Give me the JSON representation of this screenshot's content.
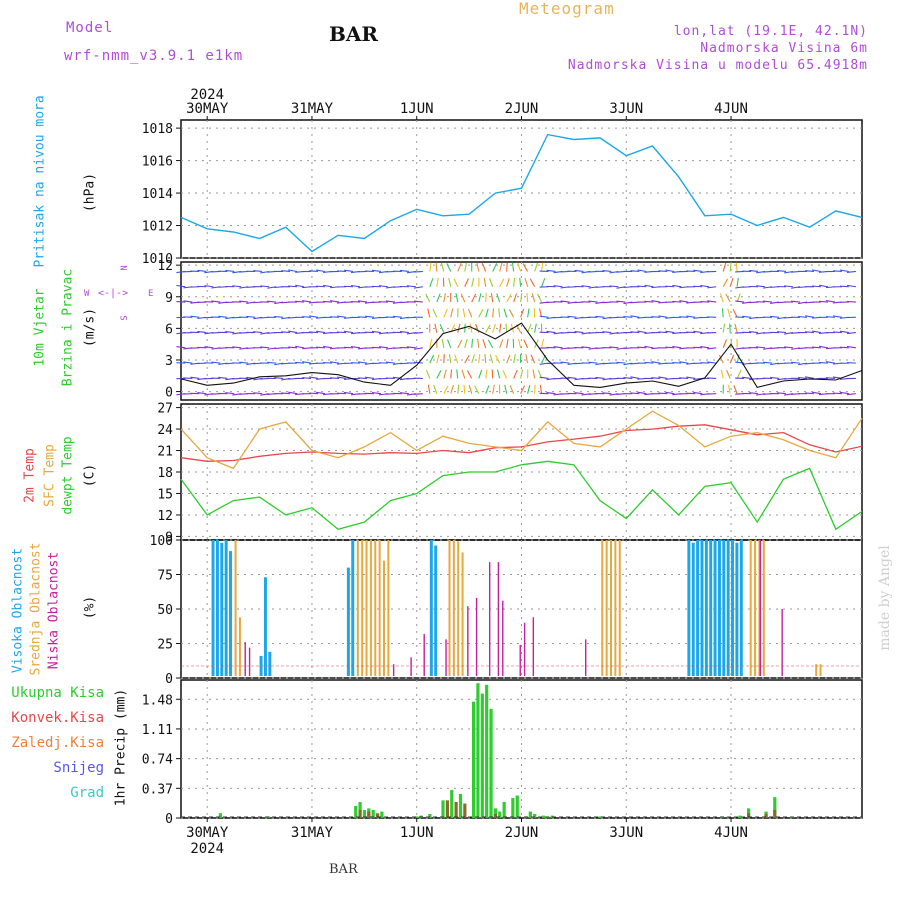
{
  "header": {
    "model_label": "Model",
    "model_name": "wrf-nmm_v3.9.1 e1km",
    "station": "BAR",
    "title": "Meteogram",
    "coords": "lon,lat (19.1E, 42.1N)",
    "elevation": "Nadmorska Visina 6m",
    "model_elevation": "Nadmorska Visina u modelu 65.4918m"
  },
  "footer": {
    "station": "BAR",
    "credit": "made by Angel"
  },
  "time_axis": {
    "year": "2024",
    "days": [
      "30MAY",
      "31MAY",
      "1JUN",
      "2JUN",
      "3JUN",
      "4JUN"
    ]
  },
  "colors": {
    "pressure": "#1ea7e8",
    "temp2m": "#e8474c",
    "sfc_temp": "#e7a840",
    "dewpoint": "#2ecc2e",
    "high_cloud": "#1ea7e8",
    "mid_cloud": "#e7a840",
    "low_cloud": "#c6209a",
    "total_precip": "#2ecc2e",
    "conv_precip": "#e8474c",
    "frozen_precip": "#f07f3a",
    "snow": "#5858e0",
    "hail": "#3cc8c8",
    "wind_label": "#2ecc2e",
    "compass": "#b04dd6"
  },
  "panels": {
    "pressure": {
      "label": "Pritisak na nivou mora",
      "unit": "(hPa)",
      "ticks": [
        "1010",
        "1012",
        "1014",
        "1016",
        "1018"
      ]
    },
    "wind": {
      "label_line1": "10m Vjetar",
      "label_line2": "Brzina i Pravac",
      "unit": "(m/s)",
      "compass_n": "N",
      "compass_s": "S",
      "compass_w": "W",
      "compass_e": "E",
      "ticks": [
        "0",
        "3",
        "6",
        "9",
        "12"
      ]
    },
    "temperature": {
      "label_2m": "2m Temp",
      "label_sfc": "SFC Temp",
      "label_dew": "dewpt Temp",
      "unit": "(C)",
      "ticks": [
        "9",
        "12",
        "15",
        "18",
        "21",
        "24",
        "27"
      ]
    },
    "clouds": {
      "label_high": "Visoka Oblacnost",
      "label_mid": "Srednja Oblacnost",
      "label_low": "Niska Oblacnost",
      "unit": "(%)",
      "ticks": [
        "0",
        "25",
        "50",
        "75",
        "100"
      ]
    },
    "precip": {
      "legend": [
        "Ukupna Kisa",
        "Konvek.Kisa",
        "Zaledj.Kisa",
        "Snijeg",
        "Grad"
      ],
      "unit": "1hr Precip (mm)",
      "ticks": [
        "0",
        "0.37",
        "0.74",
        "1.11",
        "1.48"
      ]
    }
  },
  "chart_data": [
    {
      "type": "line",
      "title": "Pritisak na nivou mora",
      "ylabel": "(hPa)",
      "ylim": [
        1010,
        1018.5
      ],
      "x_hours": [
        0,
        6,
        12,
        18,
        24,
        30,
        36,
        42,
        48,
        54,
        60,
        66,
        72,
        78,
        84,
        90,
        96,
        102,
        108,
        114,
        120,
        126,
        132,
        138,
        144,
        150,
        156
      ],
      "series": [
        {
          "values": [
            1012.5,
            1011.8,
            1011.6,
            1011.2,
            1011.9,
            1010.4,
            1011.4,
            1011.2,
            1012.3,
            1013.0,
            1012.6,
            1012.7,
            1014.0,
            1014.3,
            1017.6,
            1017.3,
            1017.4,
            1016.3,
            1016.9,
            1015.0,
            1012.6,
            1012.7,
            1012.0,
            1012.5,
            1011.9,
            1012.9,
            1012.5
          ]
        }
      ]
    },
    {
      "type": "line",
      "title": "10m Vjetar Brzina i Pravac",
      "ylabel": "(m/s)",
      "ylim": [
        -0.8,
        12.3
      ],
      "x_hours": [
        0,
        6,
        12,
        18,
        24,
        30,
        36,
        42,
        48,
        54,
        60,
        66,
        72,
        78,
        84,
        90,
        96,
        102,
        108,
        114,
        120,
        126,
        132,
        138,
        144,
        150,
        156
      ],
      "series": [
        {
          "values": [
            1.2,
            0.6,
            0.8,
            1.4,
            1.5,
            1.8,
            1.6,
            0.9,
            0.6,
            2.5,
            5.5,
            6.2,
            5.0,
            6.5,
            3.0,
            0.6,
            0.4,
            0.8,
            1.0,
            0.5,
            1.3,
            4.5,
            0.4,
            1.0,
            1.2,
            1.1,
            2.0
          ]
        }
      ]
    },
    {
      "type": "line",
      "title": "2m Temp / SFC Temp / dewpt Temp",
      "ylabel": "(C)",
      "ylim": [
        8.5,
        27.5
      ],
      "x_hours": [
        0,
        6,
        12,
        18,
        24,
        30,
        36,
        42,
        48,
        54,
        60,
        66,
        72,
        78,
        84,
        90,
        96,
        102,
        108,
        114,
        120,
        126,
        132,
        138,
        144,
        150,
        156
      ],
      "series": [
        {
          "name": "2m Temp",
          "values": [
            20.0,
            19.5,
            19.6,
            20.2,
            20.6,
            20.8,
            20.6,
            20.5,
            20.7,
            20.6,
            21.0,
            20.7,
            21.4,
            21.5,
            22.2,
            22.6,
            23.0,
            23.8,
            24.0,
            24.4,
            24.6,
            23.9,
            23.2,
            23.5,
            21.8,
            20.8,
            21.6
          ]
        },
        {
          "name": "SFC Temp",
          "values": [
            24.0,
            20.0,
            18.5,
            24.0,
            25.0,
            21.0,
            20.0,
            21.5,
            23.5,
            21.0,
            23.0,
            22.0,
            21.5,
            21.0,
            25.0,
            22.0,
            21.5,
            24.0,
            26.5,
            24.5,
            21.5,
            23.0,
            23.5,
            22.5,
            21.0,
            20.0,
            25.5
          ]
        },
        {
          "name": "dewpt Temp",
          "values": [
            17.0,
            12.0,
            14.0,
            14.5,
            12.0,
            13.0,
            10.0,
            11.0,
            14.0,
            15.0,
            17.5,
            18.0,
            18.0,
            19.0,
            19.5,
            19.0,
            14.0,
            11.5,
            15.5,
            12.0,
            16.0,
            16.5,
            11.0,
            17.0,
            18.5,
            10.0,
            12.5
          ]
        }
      ]
    },
    {
      "type": "bar",
      "title": "Visoka / Srednja / Niska Oblacnost",
      "ylabel": "(%)",
      "ylim": [
        0,
        100
      ],
      "series": [
        {
          "name": "Visoka Oblacnost",
          "x_hours": [
            7,
            8,
            9,
            10,
            11,
            18,
            19,
            20,
            38,
            39,
            57,
            58,
            116,
            117,
            118,
            119,
            120,
            121,
            122,
            123,
            124,
            125,
            126,
            127,
            128
          ],
          "values": [
            100,
            100,
            98,
            100,
            92,
            16,
            73,
            19,
            80,
            100,
            100,
            96,
            100,
            98,
            100,
            100,
            100,
            100,
            100,
            100,
            100,
            100,
            100,
            98,
            100
          ]
        },
        {
          "name": "Srednja Oblacnost",
          "x_hours": [
            12,
            13,
            40,
            41,
            42,
            43,
            44,
            45,
            46,
            47,
            61,
            62,
            63,
            64,
            96,
            97,
            98,
            99,
            100,
            130,
            131,
            132,
            133,
            145,
            146
          ],
          "values": [
            100,
            44,
            100,
            100,
            100,
            100,
            100,
            100,
            85,
            100,
            100,
            100,
            99,
            91,
            100,
            100,
            100,
            100,
            100,
            100,
            100,
            100,
            100,
            10,
            10
          ]
        },
        {
          "name": "Niska Oblacnost",
          "x_hours": [
            14,
            15,
            48,
            52,
            55,
            60,
            65,
            67,
            70,
            72,
            73,
            77,
            78,
            80,
            92,
            132,
            137
          ],
          "values": [
            26,
            22,
            10,
            15,
            32,
            28,
            52,
            58,
            84,
            84,
            56,
            24,
            40,
            44,
            28,
            100,
            50
          ]
        }
      ]
    },
    {
      "type": "bar",
      "title": "1hr Precip",
      "ylabel": "1hr Precip (mm)",
      "ylim": [
        0,
        1.72
      ],
      "series": [
        {
          "name": "Ukupna Kisa",
          "x_hours": [
            9,
            20,
            40,
            41,
            42,
            43,
            44,
            45,
            46,
            54,
            55,
            57,
            60,
            62,
            64,
            67,
            68,
            69,
            70,
            71,
            72,
            73,
            74,
            76,
            77,
            79,
            80,
            81,
            83,
            84,
            85,
            96,
            124,
            128,
            130,
            134,
            136,
            140
          ],
          "values": [
            0.06,
            0.02,
            0.15,
            0.2,
            0.1,
            0.12,
            0.1,
            0.06,
            0.08,
            0.02,
            0.03,
            0.05,
            0.22,
            0.35,
            0.3,
            1.45,
            1.68,
            1.55,
            1.66,
            1.36,
            0.12,
            0.08,
            0.2,
            0.25,
            0.28,
            0.02,
            0.08,
            0.05,
            0.03,
            0.02,
            0.03,
            0.02,
            0.02,
            0.03,
            0.12,
            0.08,
            0.26,
            0.01
          ]
        },
        {
          "name": "Konvek.Kisa",
          "x_hours": [
            41,
            43,
            45,
            61,
            63,
            65,
            72,
            130,
            134,
            136
          ],
          "values": [
            0.1,
            0.08,
            0.05,
            0.22,
            0.2,
            0.18,
            0.05,
            0.06,
            0.05,
            0.1
          ]
        },
        {
          "name": "Zaledj.Kisa",
          "x_hours": [],
          "values": []
        },
        {
          "name": "Snijeg",
          "x_hours": [],
          "values": []
        },
        {
          "name": "Grad",
          "x_hours": [],
          "values": []
        }
      ]
    }
  ]
}
